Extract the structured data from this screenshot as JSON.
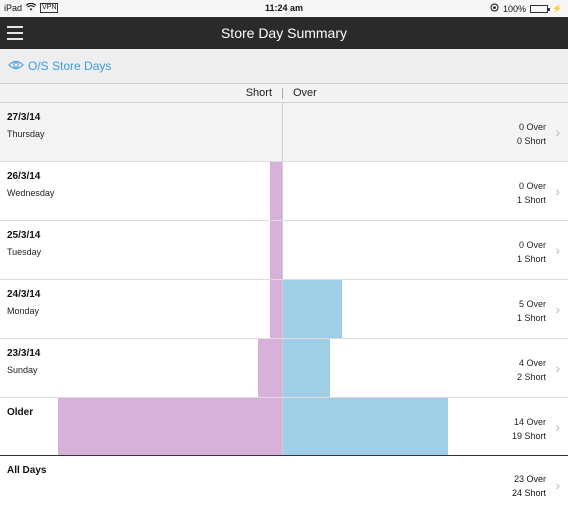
{
  "status_bar": {
    "device": "iPad",
    "vpn": "VPN",
    "time": "11:24 am",
    "battery_text": "100%",
    "battery_level": 1.0
  },
  "nav": {
    "title": "Store Day Summary"
  },
  "filter": {
    "label": "O/S Store Days"
  },
  "columns": {
    "short": "Short",
    "over": "Over"
  },
  "colors": {
    "short_bar": "#d7b1d9",
    "over_bar": "#9ecfe6",
    "link": "#3d9de0",
    "nav_bg": "#2a2a2a"
  },
  "chart_scale_max": 19,
  "rows": [
    {
      "date": "27/3/14",
      "day": "Thursday",
      "over": 0,
      "short": 0,
      "over_text": "0 Over",
      "short_text": "0 Short"
    },
    {
      "date": "26/3/14",
      "day": "Wednesday",
      "over": 0,
      "short": 1,
      "over_text": "0 Over",
      "short_text": "1 Short"
    },
    {
      "date": "25/3/14",
      "day": "Tuesday",
      "over": 0,
      "short": 1,
      "over_text": "0 Over",
      "short_text": "1 Short"
    },
    {
      "date": "24/3/14",
      "day": "Monday",
      "over": 5,
      "short": 1,
      "over_text": "5 Over",
      "short_text": "1 Short"
    },
    {
      "date": "23/3/14",
      "day": "Sunday",
      "over": 4,
      "short": 2,
      "over_text": "4 Over",
      "short_text": "2 Short"
    },
    {
      "date": "Older",
      "day": "",
      "over": 14,
      "short": 19,
      "over_text": "14 Over",
      "short_text": "19 Short"
    }
  ],
  "all_days": {
    "label": "All Days",
    "over_text": "23 Over",
    "short_text": "24 Short"
  }
}
